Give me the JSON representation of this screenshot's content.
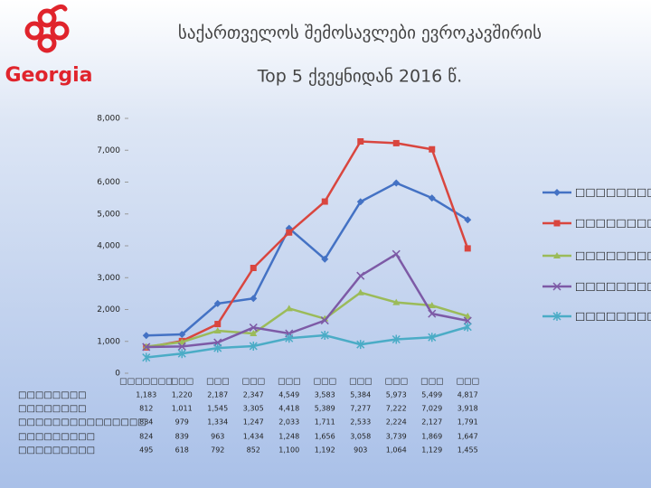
{
  "logo_text": "Georgia",
  "chart_data": {
    "type": "line",
    "title": "საქართველოს შემოსავლები ევროკავშირის",
    "subtitle": "Top 5 ქვეყნიდან 2016 წ.",
    "categories": [
      "□□□□□□□",
      "□□□",
      "□□□",
      "□□□",
      "□□□",
      "□□□",
      "□□□",
      "□□□",
      "□□□",
      "□□□"
    ],
    "ylim": [
      0,
      8000
    ],
    "yticks": [
      0,
      {
        "value": 1000,
        "label": "1,000"
      },
      {
        "value": 2000,
        "label": "2,000"
      },
      {
        "value": 3000,
        "label": "3,000"
      },
      {
        "value": 4000,
        "label": "4,000"
      },
      {
        "value": 5000,
        "label": "5,000"
      },
      {
        "value": 6000,
        "label": "6,000"
      },
      {
        "value": 7000,
        "label": "7,000"
      },
      {
        "value": 8000,
        "label": "8,000"
      }
    ],
    "series": [
      {
        "name": "□□□□□□□□",
        "color": "#4472c4",
        "marker": "diamond",
        "values": [
          1183,
          1220,
          2187,
          2347,
          4549,
          3583,
          5384,
          5973,
          5499,
          4817
        ],
        "value_labels": [
          "1,183",
          "1,220",
          "2,187",
          "2,347",
          "4,549",
          "3,583",
          "5,384",
          "5,973",
          "5,499",
          "4,817"
        ]
      },
      {
        "name": "□□□□□□□□",
        "color": "#d9463f",
        "marker": "square",
        "values": [
          812,
          1011,
          1545,
          3305,
          4418,
          5389,
          7277,
          7222,
          7029,
          3918
        ],
        "value_labels": [
          "812",
          "1,011",
          "1,545",
          "3,305",
          "4,418",
          "5,389",
          "7,277",
          "7,222",
          "7,029",
          "3,918"
        ]
      },
      {
        "name": "□□□□□□□□□□□□□□□",
        "color": "#9bbb59",
        "marker": "triangle",
        "values": [
          834,
          979,
          1334,
          1247,
          2033,
          1711,
          2533,
          2224,
          2127,
          1791
        ],
        "value_labels": [
          "834",
          "979",
          "1,334",
          "1,247",
          "2,033",
          "1,711",
          "2,533",
          "2,224",
          "2,127",
          "1,791"
        ]
      },
      {
        "name": "□□□□□□□□□",
        "color": "#7d5aa6",
        "marker": "x",
        "values": [
          824,
          839,
          963,
          1434,
          1248,
          1656,
          3058,
          3739,
          1869,
          1647
        ],
        "value_labels": [
          "824",
          "839",
          "963",
          "1,434",
          "1,248",
          "1,656",
          "3,058",
          "3,739",
          "1,869",
          "1,647"
        ]
      },
      {
        "name": "□□□□□□□□□",
        "color": "#4bacc6",
        "marker": "star",
        "values": [
          495,
          618,
          792,
          852,
          1100,
          1192,
          903,
          1064,
          1129,
          1455
        ],
        "value_labels": [
          "495",
          "618",
          "792",
          "852",
          "1,100",
          "1,192",
          "903",
          "1,064",
          "1,129",
          "1,455"
        ]
      }
    ]
  }
}
